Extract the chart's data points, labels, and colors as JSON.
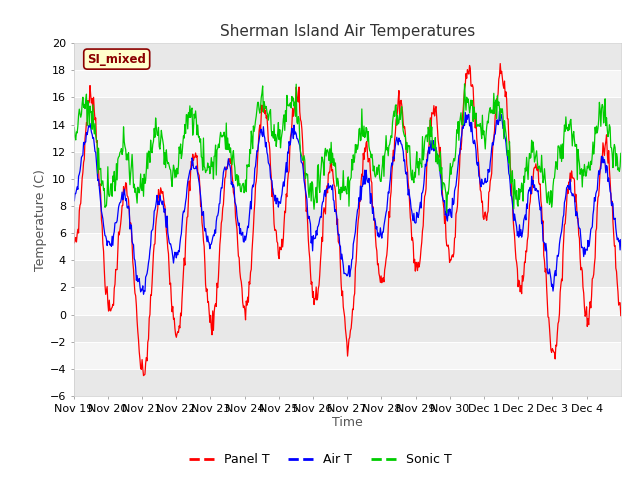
{
  "title": "Sherman Island Air Temperatures",
  "xlabel": "Time",
  "ylabel": "Temperature (C)",
  "ylim": [
    -6,
    20
  ],
  "yticks": [
    -6,
    -4,
    -2,
    0,
    2,
    4,
    6,
    8,
    10,
    12,
    14,
    16,
    18,
    20
  ],
  "x_tick_labels": [
    "Nov 19",
    "Nov 20",
    "Nov 21",
    "Nov 22",
    "Nov 23",
    "Nov 24",
    "Nov 25",
    "Nov 26",
    "Nov 27",
    "Nov 28",
    "Nov 29",
    "Nov 30",
    "Dec 1",
    "Dec 2",
    "Dec 3",
    "Dec 4"
  ],
  "label_box_text": "SI_mixed",
  "legend_entries": [
    "Panel T",
    "Air T",
    "Sonic T"
  ],
  "line_colors": [
    "#ff0000",
    "#0000ff",
    "#00cc00"
  ],
  "fig_bg_color": "#ffffff",
  "plot_bg_color": "#ffffff",
  "band_color_a": "#e8e8e8",
  "band_color_b": "#f5f5f5",
  "title_fontsize": 11,
  "axis_label_fontsize": 9,
  "tick_fontsize": 8,
  "legend_fontsize": 9
}
